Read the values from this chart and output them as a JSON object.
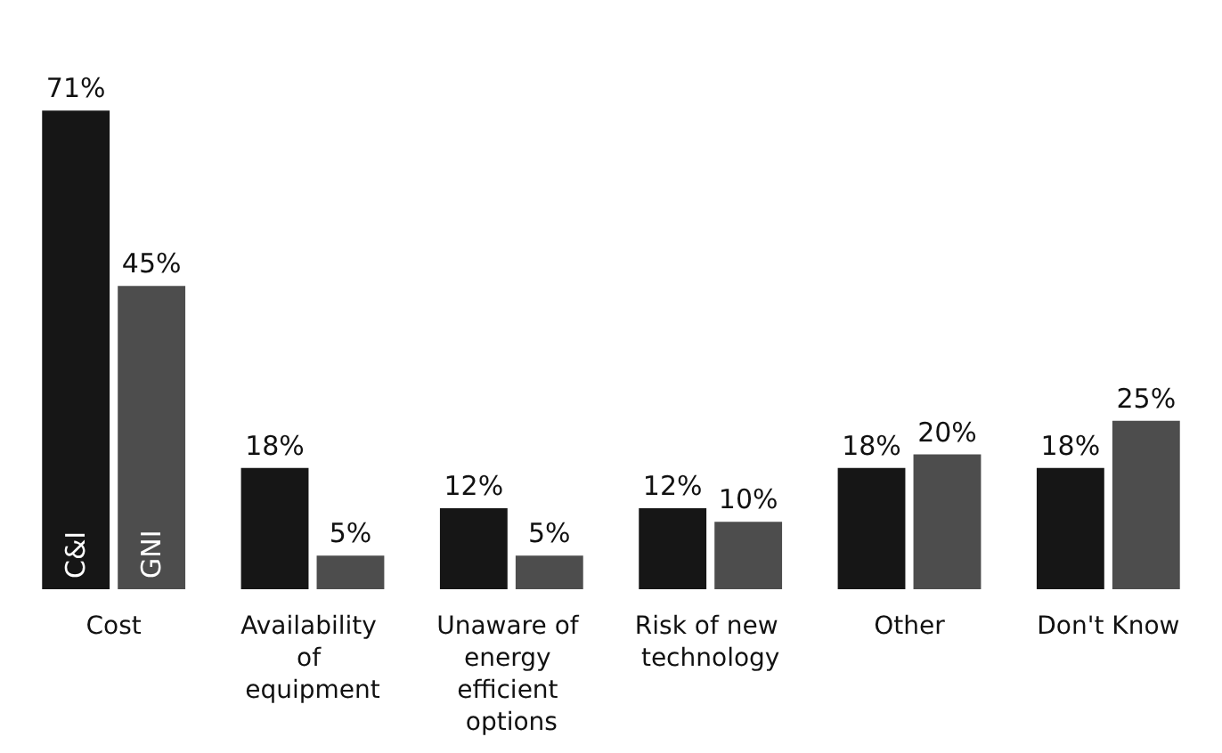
{
  "chart_data": {
    "type": "bar",
    "categories": [
      "Cost",
      "Availability of equipment",
      "Unaware of energy efficient options",
      "Risk of new technology",
      "Other",
      "Don't Know"
    ],
    "series": [
      {
        "name": "C&I",
        "color": "#161616",
        "values": [
          71,
          18,
          12,
          12,
          18,
          18
        ],
        "value_labels": [
          "71%",
          "18%",
          "12%",
          "12%",
          "18%",
          "18%"
        ]
      },
      {
        "name": "GNI",
        "color": "#4d4d4d",
        "values": [
          45,
          5,
          5,
          10,
          20,
          25
        ],
        "value_labels": [
          "45%",
          "5%",
          "5%",
          "10%",
          "20%",
          "25%"
        ]
      }
    ],
    "grid": false,
    "legend": false
  }
}
